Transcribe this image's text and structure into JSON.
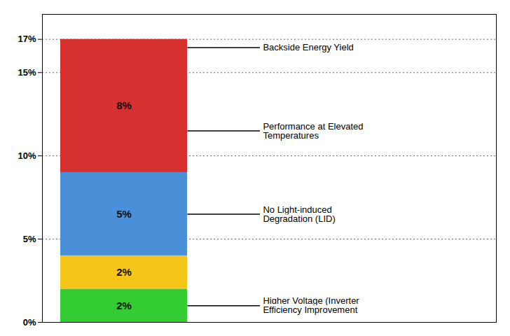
{
  "chart_data": {
    "type": "bar",
    "stacked": true,
    "categories": [
      null
    ],
    "series": [
      {
        "color": "#33cc33",
        "values": [
          2
        ],
        "value_labels": [
          "2%"
        ]
      },
      {
        "color": "#f5c518",
        "values": [
          2
        ],
        "value_labels": [
          "2%"
        ]
      },
      {
        "color": "#4a90d9",
        "values": [
          5
        ],
        "value_labels": [
          "5%"
        ]
      },
      {
        "color": "#d63031",
        "values": [
          8
        ],
        "value_labels": [
          "8%"
        ]
      }
    ],
    "data_labels": true,
    "ylim": [
      0,
      18.5
    ],
    "yticks": [
      {
        "value": 0,
        "label": "0%"
      },
      {
        "value": 5,
        "label": "5%"
      },
      {
        "value": 10,
        "label": "10%"
      },
      {
        "value": 15,
        "label": "15%"
      },
      {
        "value": 17,
        "label": "17%"
      }
    ],
    "grid": true,
    "tick_labels": "y",
    "annotations": [
      {
        "text": "Backside Energy Yield",
        "y": 16.5
      },
      {
        "text": "Performance at Elevated\nTemperatures",
        "y": 11.5
      },
      {
        "text": "No Light-induced\nDegradation (LID)",
        "y": 6.5
      },
      {
        "text": "Higher Voltage (Inverter\nEfficiency Improvement",
        "y": 1.0
      }
    ]
  }
}
